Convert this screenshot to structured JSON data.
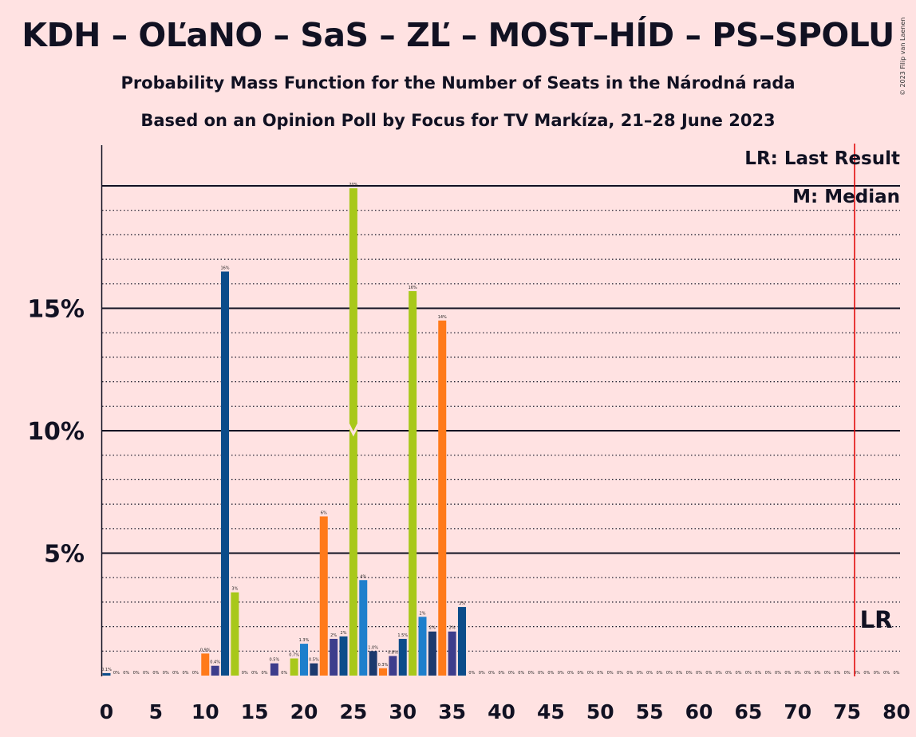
{
  "header": {
    "title": "KDH – OĽaNO – SaS – ZĽ – MOST–HÍD – PS–SPOLU",
    "subtitle1": "Probability Mass Function for the Number of Seats in the Národná rada",
    "subtitle2": "Based on an Opinion Poll by Focus for TV Markíza, 21–28 June 2023",
    "copyright": "© 2023 Filip van Laenen"
  },
  "legend": {
    "last_result": "LR: Last Result",
    "median": "M: Median"
  },
  "colors": {
    "background": "#ffe2e2",
    "dark_blue": "#0b4c8a",
    "navy": "#1c3a6e",
    "light_blue": "#1e7fcc",
    "yellow_green": "#a8c81a",
    "orange": "#ff7a1a",
    "purple": "#3d3d8c",
    "lr_line": "#e00000"
  },
  "chart_data": {
    "type": "bar",
    "title": "KDH – OĽaNO – SaS – ZĽ – MOST–HÍD – PS–SPOLU",
    "xlabel": "",
    "ylabel": "",
    "xlim": [
      0,
      80
    ],
    "ylim": [
      0,
      21.5
    ],
    "x_ticks": [
      "0",
      "5",
      "10",
      "15",
      "20",
      "25",
      "30",
      "35",
      "40",
      "45",
      "50",
      "55",
      "60",
      "65",
      "70",
      "75",
      "80"
    ],
    "y_ticks": [
      {
        "value": 5,
        "label": "5%"
      },
      {
        "value": 10,
        "label": "10%"
      },
      {
        "value": 15,
        "label": "15%"
      }
    ],
    "grid": "dotted every 1%, solid at 5%",
    "last_result": {
      "seats": 76,
      "label": "LR"
    },
    "median": {
      "seats": 25,
      "label": "M"
    },
    "bars": [
      {
        "x": 0,
        "value": 0.1,
        "label": "0.1%",
        "color": "dark_blue"
      },
      {
        "x": 1,
        "value": 0,
        "label": "0%",
        "color": "dark_blue"
      },
      {
        "x": 2,
        "value": 0,
        "label": "0%",
        "color": "dark_blue"
      },
      {
        "x": 3,
        "value": 0,
        "label": "0%",
        "color": "dark_blue"
      },
      {
        "x": 4,
        "value": 0,
        "label": "0%",
        "color": "dark_blue"
      },
      {
        "x": 5,
        "value": 0,
        "label": "0%",
        "color": "dark_blue"
      },
      {
        "x": 6,
        "value": 0,
        "label": "0%",
        "color": "dark_blue"
      },
      {
        "x": 7,
        "value": 0,
        "label": "0%",
        "color": "dark_blue"
      },
      {
        "x": 8,
        "value": 0,
        "label": "0%",
        "color": "dark_blue"
      },
      {
        "x": 9,
        "value": 0,
        "label": "0%",
        "color": "dark_blue"
      },
      {
        "x": 10,
        "value": 0.9,
        "label": "0.9%",
        "color": "orange"
      },
      {
        "x": 11,
        "value": 0.4,
        "label": "0.4%",
        "color": "purple"
      },
      {
        "x": 12,
        "value": 16.5,
        "label": "16%",
        "color": "dark_blue"
      },
      {
        "x": 13,
        "value": 3.4,
        "label": "3%",
        "color": "yellow_green"
      },
      {
        "x": 14,
        "value": 0,
        "label": "0%",
        "color": "dark_blue"
      },
      {
        "x": 15,
        "value": 0,
        "label": "0%",
        "color": "dark_blue"
      },
      {
        "x": 16,
        "value": 0,
        "label": "0%",
        "color": "dark_blue"
      },
      {
        "x": 17,
        "value": 0.5,
        "label": "0.5%",
        "color": "purple"
      },
      {
        "x": 18,
        "value": 0,
        "label": "0%",
        "color": "dark_blue"
      },
      {
        "x": 19,
        "value": 0.7,
        "label": "0.7%",
        "color": "yellow_green"
      },
      {
        "x": 20,
        "value": 1.3,
        "label": "1.3%",
        "color": "light_blue"
      },
      {
        "x": 21,
        "value": 0.5,
        "label": "0.5%",
        "color": "navy"
      },
      {
        "x": 22,
        "value": 6.5,
        "label": "6%",
        "color": "orange"
      },
      {
        "x": 23,
        "value": 1.5,
        "label": "2%",
        "color": "purple"
      },
      {
        "x": 24,
        "value": 1.6,
        "label": "2%",
        "color": "dark_blue"
      },
      {
        "x": 25,
        "value": 19.9,
        "label": "20%",
        "color": "yellow_green"
      },
      {
        "x": 26,
        "value": 3.9,
        "label": "4%",
        "color": "light_blue"
      },
      {
        "x": 27,
        "value": 1.0,
        "label": "1.0%",
        "color": "navy"
      },
      {
        "x": 28,
        "value": 0.3,
        "label": "0.3%",
        "color": "orange"
      },
      {
        "x": 29,
        "value": 0.8,
        "label": "0.8%",
        "color": "purple"
      },
      {
        "x": 30,
        "value": 1.5,
        "label": "1.5%",
        "color": "dark_blue"
      },
      {
        "x": 31,
        "value": 15.7,
        "label": "16%",
        "color": "yellow_green"
      },
      {
        "x": 32,
        "value": 2.4,
        "label": "2%",
        "color": "light_blue"
      },
      {
        "x": 33,
        "value": 1.8,
        "label": "2%",
        "color": "navy"
      },
      {
        "x": 34,
        "value": 14.5,
        "label": "14%",
        "color": "orange"
      },
      {
        "x": 35,
        "value": 1.8,
        "label": "2%",
        "color": "purple"
      },
      {
        "x": 36,
        "value": 2.8,
        "label": "3%",
        "color": "dark_blue"
      },
      {
        "x": 37,
        "value": 0,
        "label": "0%",
        "color": "dark_blue"
      },
      {
        "x": 38,
        "value": 0,
        "label": "0%",
        "color": "dark_blue"
      },
      {
        "x": 39,
        "value": 0,
        "label": "0%",
        "color": "dark_blue"
      },
      {
        "x": 40,
        "value": 0,
        "label": "0%",
        "color": "dark_blue"
      },
      {
        "x": 41,
        "value": 0,
        "label": "0%",
        "color": "dark_blue"
      },
      {
        "x": 42,
        "value": 0,
        "label": "0%",
        "color": "dark_blue"
      },
      {
        "x": 43,
        "value": 0,
        "label": "0%",
        "color": "dark_blue"
      },
      {
        "x": 44,
        "value": 0,
        "label": "0%",
        "color": "dark_blue"
      },
      {
        "x": 45,
        "value": 0,
        "label": "0%",
        "color": "dark_blue"
      },
      {
        "x": 46,
        "value": 0,
        "label": "0%",
        "color": "dark_blue"
      },
      {
        "x": 47,
        "value": 0,
        "label": "0%",
        "color": "dark_blue"
      },
      {
        "x": 48,
        "value": 0,
        "label": "0%",
        "color": "dark_blue"
      },
      {
        "x": 49,
        "value": 0,
        "label": "0%",
        "color": "dark_blue"
      },
      {
        "x": 50,
        "value": 0,
        "label": "0%",
        "color": "dark_blue"
      },
      {
        "x": 51,
        "value": 0,
        "label": "0%",
        "color": "dark_blue"
      },
      {
        "x": 52,
        "value": 0,
        "label": "0%",
        "color": "dark_blue"
      },
      {
        "x": 53,
        "value": 0,
        "label": "0%",
        "color": "dark_blue"
      },
      {
        "x": 54,
        "value": 0,
        "label": "0%",
        "color": "dark_blue"
      },
      {
        "x": 55,
        "value": 0,
        "label": "0%",
        "color": "dark_blue"
      },
      {
        "x": 56,
        "value": 0,
        "label": "0%",
        "color": "dark_blue"
      },
      {
        "x": 57,
        "value": 0,
        "label": "0%",
        "color": "dark_blue"
      },
      {
        "x": 58,
        "value": 0,
        "label": "0%",
        "color": "dark_blue"
      },
      {
        "x": 59,
        "value": 0,
        "label": "0%",
        "color": "dark_blue"
      },
      {
        "x": 60,
        "value": 0,
        "label": "0%",
        "color": "dark_blue"
      },
      {
        "x": 61,
        "value": 0,
        "label": "0%",
        "color": "dark_blue"
      },
      {
        "x": 62,
        "value": 0,
        "label": "0%",
        "color": "dark_blue"
      },
      {
        "x": 63,
        "value": 0,
        "label": "0%",
        "color": "dark_blue"
      },
      {
        "x": 64,
        "value": 0,
        "label": "0%",
        "color": "dark_blue"
      },
      {
        "x": 65,
        "value": 0,
        "label": "0%",
        "color": "dark_blue"
      },
      {
        "x": 66,
        "value": 0,
        "label": "0%",
        "color": "dark_blue"
      },
      {
        "x": 67,
        "value": 0,
        "label": "0%",
        "color": "dark_blue"
      },
      {
        "x": 68,
        "value": 0,
        "label": "0%",
        "color": "dark_blue"
      },
      {
        "x": 69,
        "value": 0,
        "label": "0%",
        "color": "dark_blue"
      },
      {
        "x": 70,
        "value": 0,
        "label": "0%",
        "color": "dark_blue"
      },
      {
        "x": 71,
        "value": 0,
        "label": "0%",
        "color": "dark_blue"
      },
      {
        "x": 72,
        "value": 0,
        "label": "0%",
        "color": "dark_blue"
      },
      {
        "x": 73,
        "value": 0,
        "label": "0%",
        "color": "dark_blue"
      },
      {
        "x": 74,
        "value": 0,
        "label": "0%",
        "color": "dark_blue"
      },
      {
        "x": 75,
        "value": 0,
        "label": "0%",
        "color": "dark_blue"
      },
      {
        "x": 76,
        "value": 0,
        "label": "0%",
        "color": "dark_blue"
      },
      {
        "x": 77,
        "value": 0,
        "label": "0%",
        "color": "dark_blue"
      },
      {
        "x": 78,
        "value": 0,
        "label": "0%",
        "color": "dark_blue"
      },
      {
        "x": 79,
        "value": 0,
        "label": "0%",
        "color": "dark_blue"
      },
      {
        "x": 80,
        "value": 0,
        "label": "0%",
        "color": "dark_blue"
      }
    ]
  }
}
